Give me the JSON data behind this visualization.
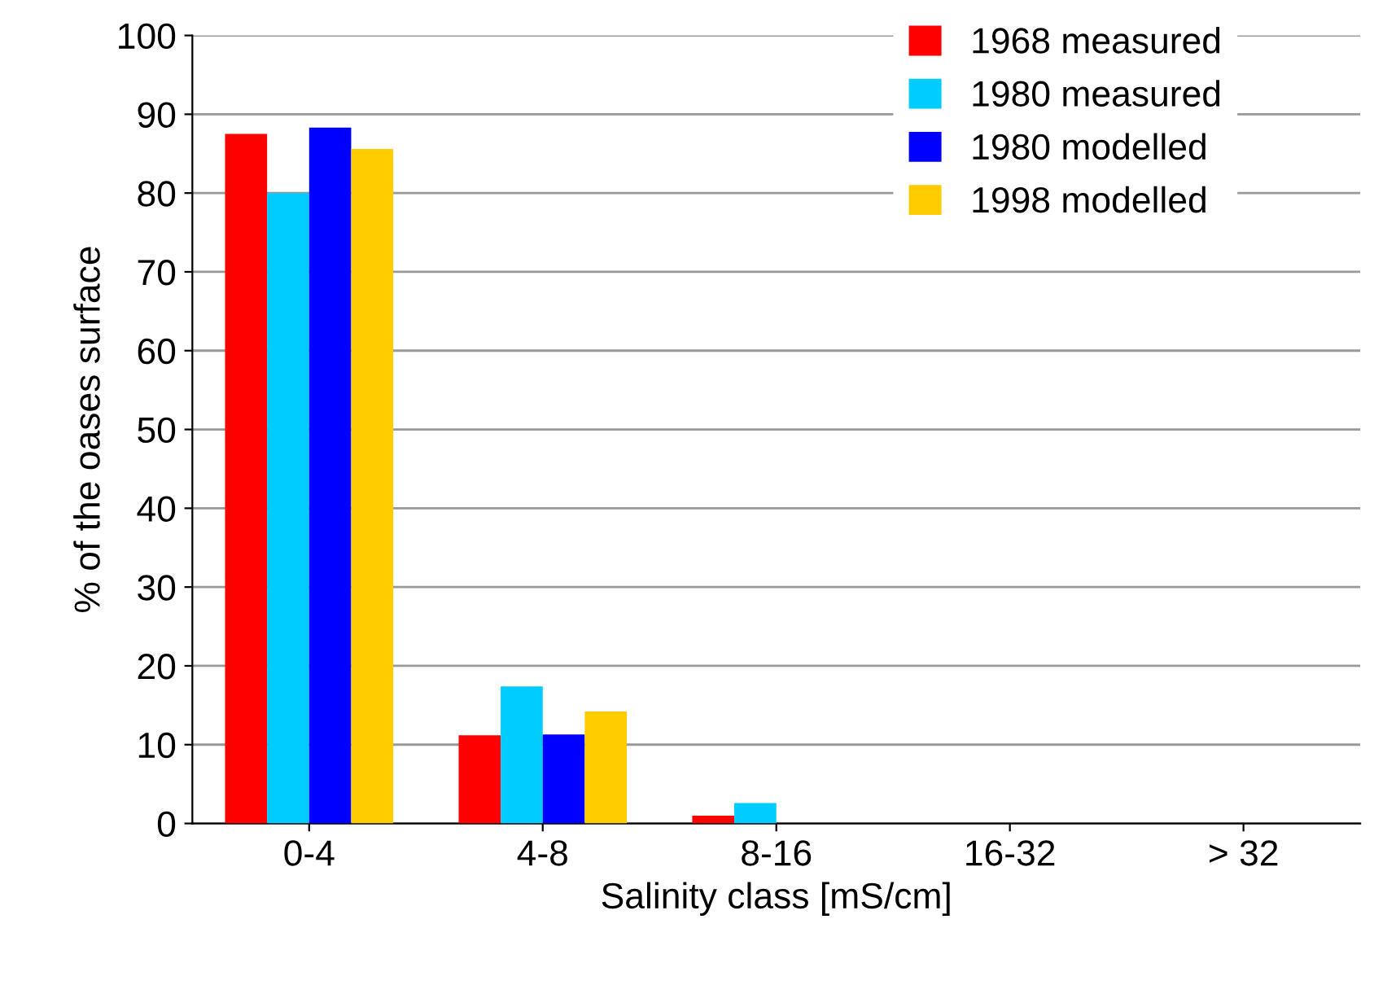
{
  "chart_data": {
    "type": "bar",
    "xlabel": "Salinity class [mS/cm]",
    "ylabel": "% of the oases surface",
    "categories": [
      "0-4",
      "4-8",
      "8-16",
      "16-32",
      "> 32"
    ],
    "series": [
      {
        "name": "1968 measured",
        "color": "#ff0000",
        "values": [
          87.5,
          11.2,
          1.0,
          0,
          0
        ]
      },
      {
        "name": "1980 measured",
        "color": "#00ccff",
        "values": [
          80.0,
          17.4,
          2.6,
          0,
          0
        ]
      },
      {
        "name": "1980 modelled",
        "color": "#0000ff",
        "values": [
          88.3,
          11.3,
          0,
          0,
          0
        ]
      },
      {
        "name": "1998 modelled",
        "color": "#ffcc00",
        "values": [
          85.6,
          14.2,
          0,
          0,
          0
        ]
      }
    ],
    "ylim": [
      0,
      100
    ],
    "yticks": [
      0,
      10,
      20,
      30,
      40,
      50,
      60,
      70,
      80,
      90,
      100
    ],
    "grid": "y",
    "legend": "top right"
  }
}
